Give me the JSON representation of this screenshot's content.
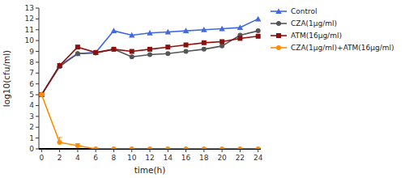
{
  "chart_data": {
    "type": "line",
    "x_label": "time(h)",
    "y_label": "log10(cfu/ml)",
    "x": [
      0,
      2,
      4,
      6,
      8,
      10,
      12,
      14,
      16,
      18,
      20,
      22,
      24
    ],
    "series": [
      {
        "name": "Control",
        "color": "#4169E1",
        "marker": "triangle",
        "values": [
          5.0,
          7.7,
          8.8,
          8.9,
          10.9,
          10.5,
          10.7,
          10.8,
          10.9,
          11.0,
          11.1,
          11.2,
          12.0
        ]
      },
      {
        "name": "CZA(1μg/ml)",
        "color": "#555555",
        "marker": "circle",
        "values": [
          5.0,
          7.6,
          8.8,
          8.85,
          9.2,
          8.5,
          8.7,
          8.8,
          9.0,
          9.2,
          9.5,
          10.5,
          10.9
        ]
      },
      {
        "name": "ATM(16μg/ml)",
        "color": "#8B1010",
        "marker": "square",
        "values": [
          5.0,
          7.7,
          9.4,
          8.9,
          9.2,
          9.0,
          9.2,
          9.4,
          9.6,
          9.8,
          9.9,
          10.2,
          10.4
        ]
      },
      {
        "name": "CZA(1μg/ml)+ATM(16μg/ml)",
        "color": "#FF8C00",
        "marker": "circle",
        "values": [
          5.0,
          0.6,
          0.3,
          0.0,
          0.0,
          0.0,
          0.0,
          0.0,
          0.0,
          0.0,
          0.0,
          0.0,
          0.0
        ],
        "error_upper": [
          0.0,
          0.45,
          0.18,
          0.0,
          0.0,
          0.0,
          0.0,
          0.0,
          0.0,
          0.0,
          0.0,
          0.0,
          0.0
        ],
        "error_lower": [
          0.0,
          0.0,
          0.0,
          0.0,
          0.0,
          0.0,
          0.0,
          0.0,
          0.0,
          0.0,
          0.0,
          0.0,
          0.0
        ]
      }
    ],
    "xlim": [
      -0.3,
      24.3
    ],
    "xticks": [
      0,
      2,
      4,
      6,
      8,
      10,
      12,
      14,
      16,
      18,
      20,
      22,
      24
    ],
    "ylim": [
      0,
      13
    ],
    "yticks": [
      0,
      1,
      2,
      3,
      4,
      5,
      6,
      7,
      8,
      9,
      10,
      11,
      12,
      13
    ],
    "grid": false,
    "legend": "right"
  }
}
